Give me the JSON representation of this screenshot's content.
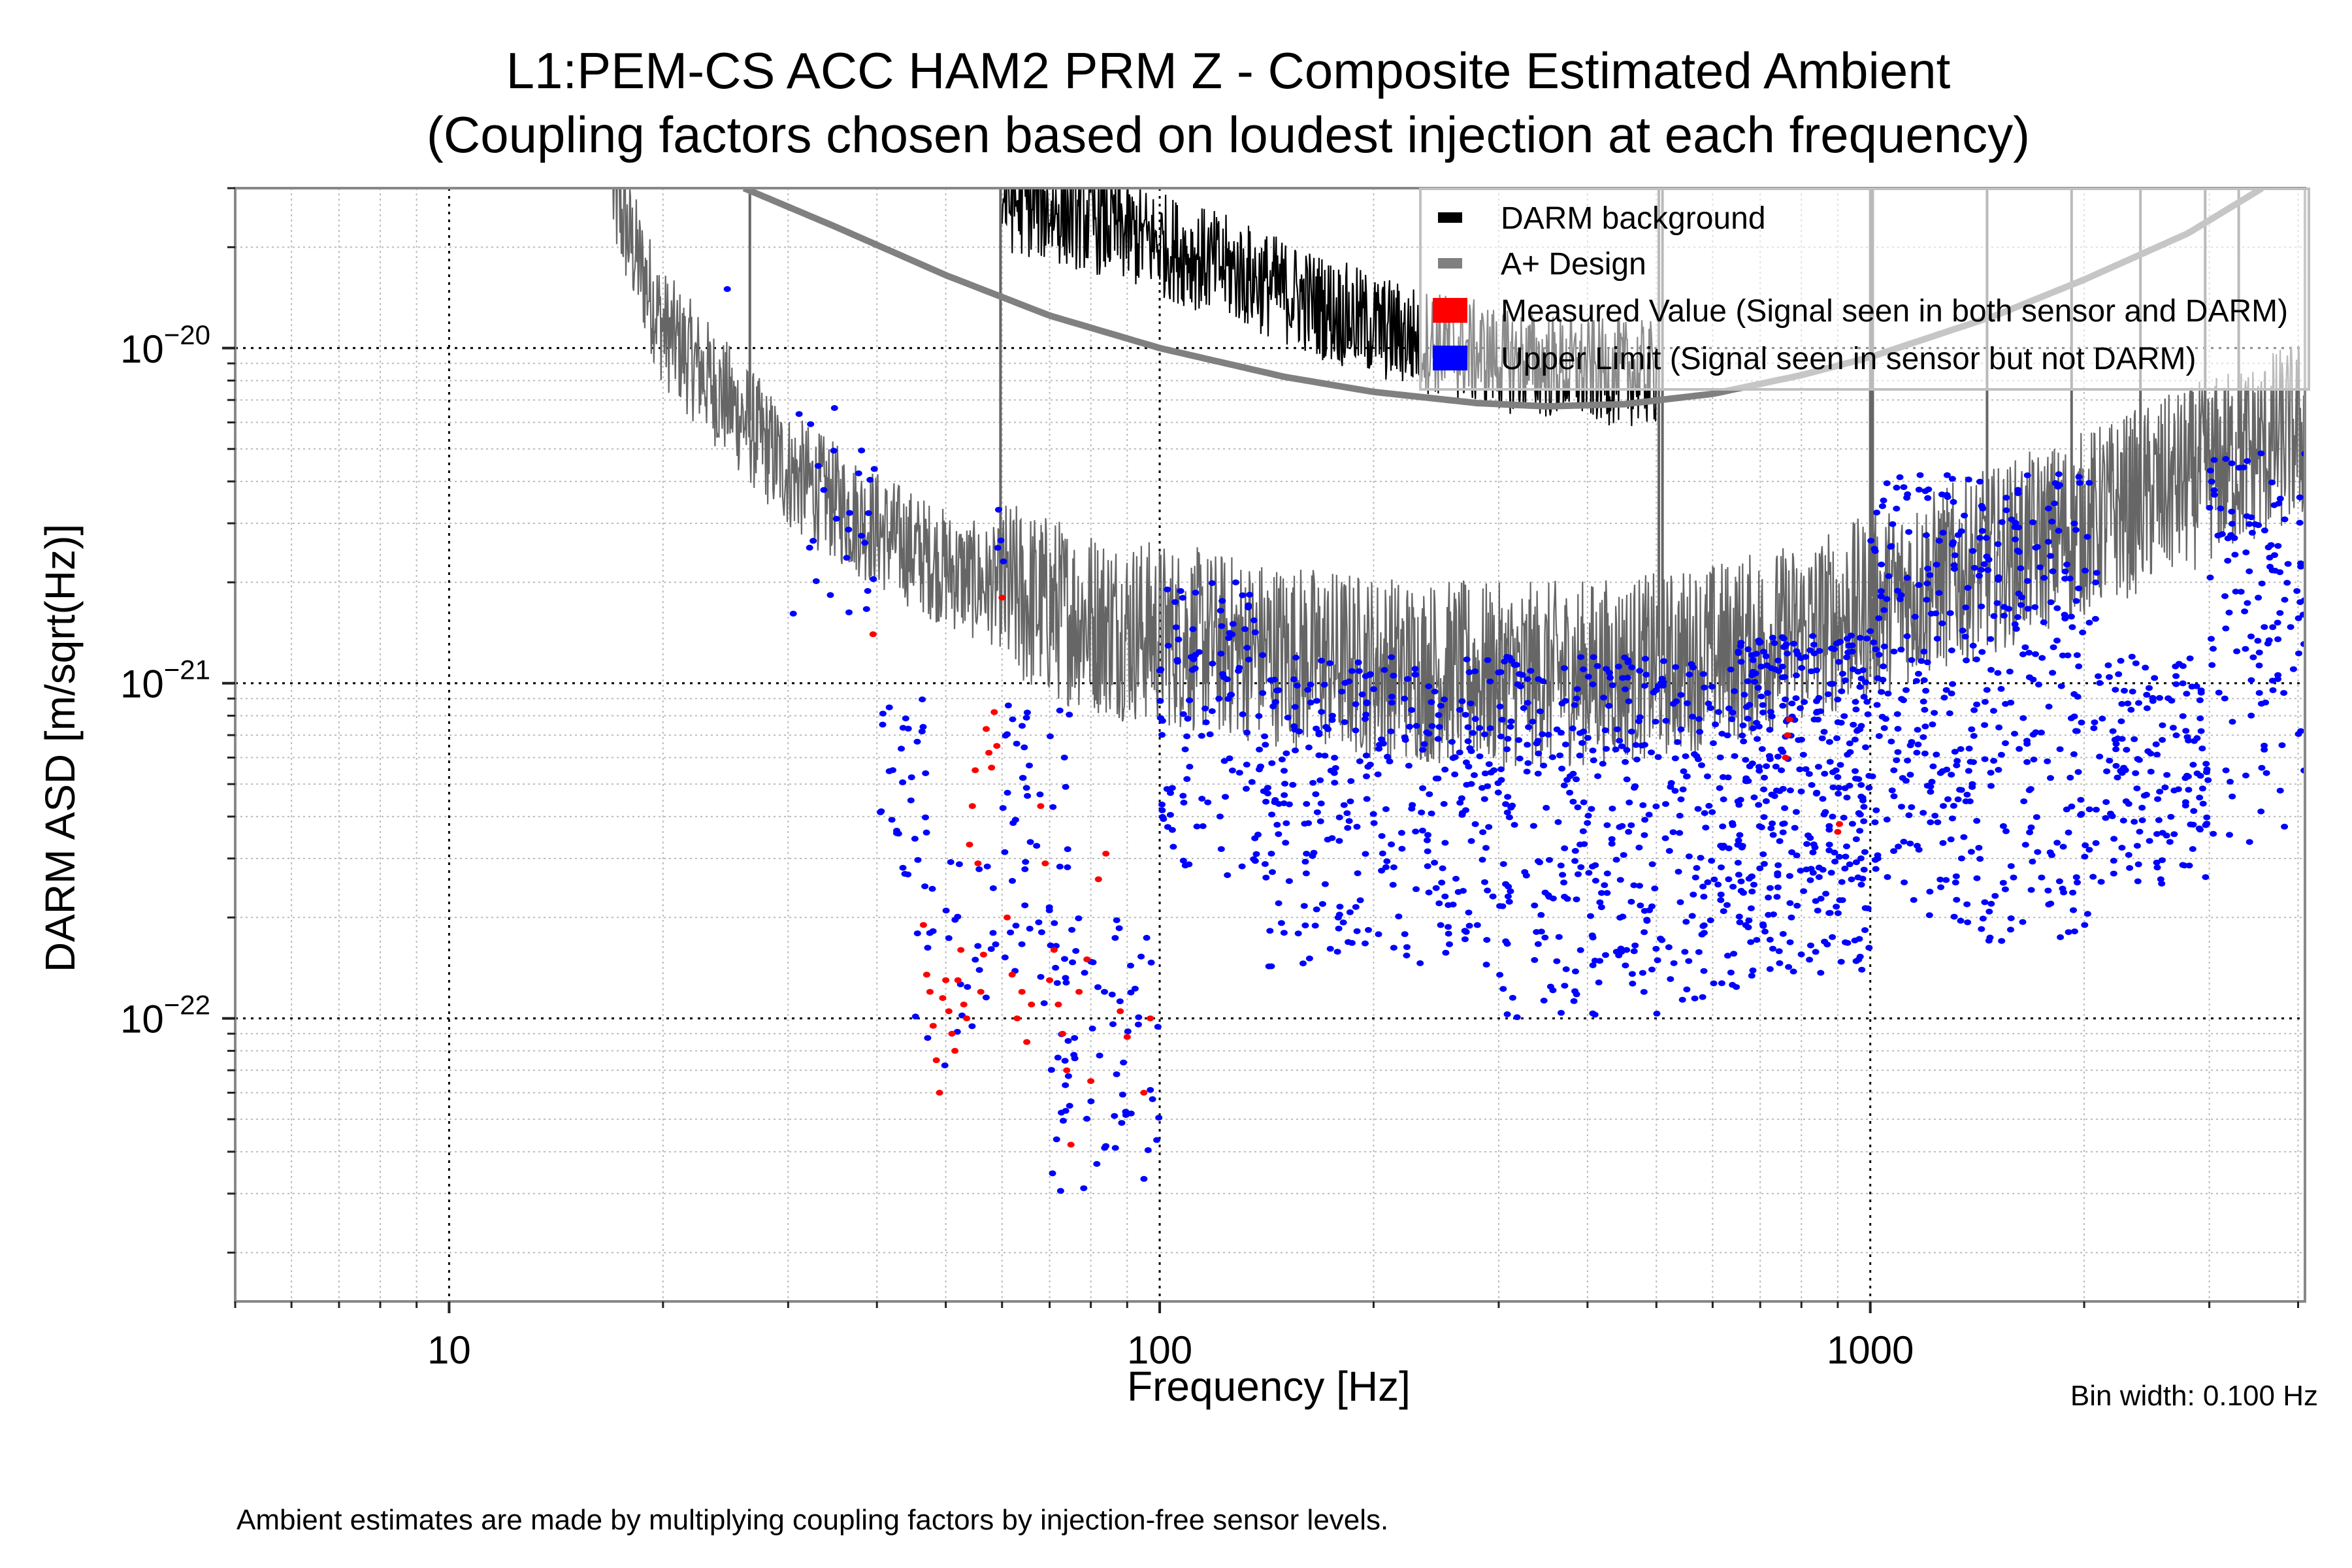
{
  "figure": {
    "title_line1": "L1:PEM-CS ACC HAM2 PRM Z - Composite Estimated Ambient",
    "title_line2": "(Coupling factors chosen based on loudest injection at each frequency)",
    "xlabel": "Frequency [Hz]",
    "ylabel": "DARM ASD [m/sqrt(Hz)]",
    "bin_width_note": "Bin width: 0.100 Hz",
    "footnote": "Ambient estimates are made by multiplying coupling factors by injection-free sensor levels."
  },
  "chart_data": {
    "type": "scatter",
    "title": "L1:PEM-CS ACC HAM2 PRM Z - Composite Estimated Ambient (Coupling factors chosen based on loudest injection at each frequency)",
    "xlabel": "Frequency [Hz]",
    "ylabel": "DARM ASD [m/sqrt(Hz)]",
    "xscale": "log",
    "yscale": "log",
    "xlim": [
      5,
      4090
    ],
    "ylim": [
      1.43e-23,
      3e-20
    ],
    "x_ticks": [
      {
        "value": 10,
        "label": "10"
      },
      {
        "value": 100,
        "label": "100"
      },
      {
        "value": 1000,
        "label": "1000"
      }
    ],
    "y_ticks": [
      {
        "value": 1e-20,
        "base": "10",
        "exp": "−20"
      },
      {
        "value": 1e-21,
        "base": "10",
        "exp": "−21"
      },
      {
        "value": 1e-22,
        "base": "10",
        "exp": "−22"
      }
    ],
    "grid": true,
    "legend_position": "top-right",
    "legend": [
      {
        "label": "DARM background",
        "color": "#000000",
        "marker": "line"
      },
      {
        "label": "A+ Design",
        "color": "#808080",
        "marker": "line"
      },
      {
        "label": "Measured Value (Signal seen in both sensor and DARM)",
        "color": "#ff0000",
        "marker": "square"
      },
      {
        "label": "Upper Limit (Signal seen in sensor but not DARM)",
        "color": "#0000ff",
        "marker": "square"
      }
    ],
    "series": [
      {
        "name": "DARM background",
        "kind": "line",
        "color": "#000000",
        "color_above_curve": "#666666",
        "x": [
          17,
          20,
          25,
          30,
          35,
          40,
          45,
          50,
          55,
          60,
          70,
          80,
          90,
          100,
          120,
          150,
          200,
          250,
          300,
          400,
          500,
          600,
          700,
          800,
          900,
          1000,
          1200,
          1500,
          2000,
          2500,
          3000,
          3500,
          4000
        ],
        "y": [
          3e-20,
          1.2e-20,
          7e-21,
          4.5e-21,
          3.6e-21,
          3e-21,
          2.6e-21,
          2.3e-21,
          2.1e-21,
          2e-21,
          1.8e-21,
          1.65e-21,
          1.55e-21,
          1.5e-21,
          1.4e-21,
          1.3e-21,
          1.2e-21,
          1.15e-21,
          1.12e-21,
          1.15e-21,
          1.2e-21,
          1.3e-21,
          1.4e-21,
          1.5e-21,
          1.65e-21,
          1.8e-21,
          2.1e-21,
          2.5e-21,
          3.2e-21,
          3.9e-21,
          4.6e-21,
          5.3e-21,
          6e-21
        ],
        "upper_branch": {
          "x": [
            60,
            80,
            100,
            130,
            160,
            200,
            250,
            300,
            350,
            400,
            500
          ],
          "y": [
            3e-20,
            2.6e-20,
            2.2e-20,
            1.8e-20,
            1.5e-20,
            1.25e-20,
            1.1e-20,
            1e-20,
            9.5e-21,
            9.2e-21,
            9e-21
          ]
        },
        "lines_hz": [
          26.5,
          59.7,
          504,
          510,
          1000,
          1008,
          1460,
          1920,
          2400,
          2960,
          3300
        ]
      },
      {
        "name": "A+ Design",
        "kind": "line",
        "color": "#808080",
        "x": [
          26,
          35,
          50,
          70,
          100,
          150,
          200,
          280,
          350,
          450,
          600,
          800,
          1000,
          1500,
          2000,
          2800,
          3560
        ],
        "y": [
          3e-20,
          2.3e-20,
          1.65e-20,
          1.25e-20,
          1e-20,
          8.2e-21,
          7.4e-21,
          6.85e-21,
          6.7e-21,
          6.8e-21,
          7.3e-21,
          8.3e-21,
          9.4e-21,
          1.25e-20,
          1.6e-20,
          2.2e-20,
          3e-20
        ]
      },
      {
        "name": "Measured Value (Signal seen in both sensor and DARM)",
        "kind": "scatter",
        "color": "#ff0000",
        "points": [
          [
            39.5,
            1.4e-21
          ],
          [
            46.5,
            1.9e-22
          ],
          [
            47,
            1.35e-22
          ],
          [
            47.5,
            1.2e-22
          ],
          [
            48,
            9.5e-23
          ],
          [
            48.5,
            7.5e-23
          ],
          [
            49,
            6e-23
          ],
          [
            49.5,
            1.15e-22
          ],
          [
            50,
            1.3e-22
          ],
          [
            50.5,
            1.05e-22
          ],
          [
            51,
            9e-23
          ],
          [
            51.5,
            8e-23
          ],
          [
            52,
            1.3e-22
          ],
          [
            52.5,
            1.6e-22
          ],
          [
            53,
            1.1e-22
          ],
          [
            53.5,
            1e-22
          ],
          [
            54,
            3.3e-22
          ],
          [
            54.5,
            4.3e-22
          ],
          [
            55,
            5.5e-22
          ],
          [
            55.5,
            2.9e-22
          ],
          [
            56,
            1.2e-22
          ],
          [
            56.5,
            1.55e-22
          ],
          [
            57,
            7.3e-22
          ],
          [
            57.5,
            6.2e-22
          ],
          [
            58,
            5.6e-22
          ],
          [
            58.5,
            8.2e-22
          ],
          [
            59,
            6.5e-22
          ],
          [
            60,
            1.8e-21
          ],
          [
            61,
            2e-22
          ],
          [
            62,
            1.35e-22
          ],
          [
            63,
            1e-22
          ],
          [
            64,
            1.2e-22
          ],
          [
            65,
            8.5e-23
          ],
          [
            66,
            1.1e-22
          ],
          [
            68,
            4.3e-22
          ],
          [
            69,
            2.9e-22
          ],
          [
            70,
            1.3e-22
          ],
          [
            71,
            1.6e-22
          ],
          [
            72,
            1.1e-22
          ],
          [
            73,
            9e-23
          ],
          [
            74,
            7e-23
          ],
          [
            75,
            4.2e-23
          ],
          [
            77,
            1.2e-22
          ],
          [
            79,
            1.5e-22
          ],
          [
            80,
            6.5e-23
          ],
          [
            82,
            2.6e-22
          ],
          [
            84,
            3.1e-22
          ],
          [
            88,
            1.05e-22
          ],
          [
            90,
            8.8e-23
          ],
          [
            95,
            6e-23
          ],
          [
            97,
            1e-22
          ],
          [
            760,
            6e-22
          ],
          [
            765,
            7e-22
          ],
          [
            770,
            7.8e-22
          ],
          [
            900,
            3.6e-22
          ],
          [
            905,
            3.8e-22
          ]
        ]
      },
      {
        "name": "Upper Limit (Signal seen in sensor but not DARM)",
        "kind": "scatter",
        "color": "#0000ff",
        "clusters": [
          {
            "f_range": [
              24.5,
              25.5
            ],
            "y_range": [
              1.5e-20,
              1.5e-20
            ],
            "n": 1
          },
          {
            "f_range": [
              30,
              40
            ],
            "y_range": [
              1.4e-21,
              7e-21
            ],
            "n": 26
          },
          {
            "f_range": [
              40,
              47
            ],
            "y_range": [
              2.5e-22,
              9e-22
            ],
            "n": 30
          },
          {
            "f_range": [
              45,
              60
            ],
            "y_range": [
              5e-23,
              3e-22
            ],
            "n": 30
          },
          {
            "f_range": [
              59,
              62
            ],
            "y_range": [
              1.3e-21,
              3.8e-21
            ],
            "n": 4
          },
          {
            "f_range": [
              60,
              75
            ],
            "y_range": [
              1.1e-22,
              9e-22
            ],
            "n": 50
          },
          {
            "f_range": [
              70,
              100
            ],
            "y_range": [
              3e-23,
              2e-22
            ],
            "n": 70
          },
          {
            "f_range": [
              100,
              140
            ],
            "y_range": [
              2.5e-22,
              2e-21
            ],
            "n": 110
          },
          {
            "f_range": [
              140,
              300
            ],
            "y_range": [
              1.4e-22,
              1.2e-21
            ],
            "n": 300
          },
          {
            "f_range": [
              300,
              650
            ],
            "y_range": [
              1e-22,
              1.2e-21
            ],
            "n": 380
          },
          {
            "f_range": [
              650,
              1000
            ],
            "y_range": [
              1.3e-22,
              1.4e-21
            ],
            "n": 350
          },
          {
            "f_range": [
              1000,
              2100
            ],
            "y_range": [
              1.6e-22,
              4.3e-21
            ],
            "n": 420
          },
          {
            "f_range": [
              2100,
              3000
            ],
            "y_range": [
              2.4e-22,
              1.2e-21
            ],
            "n": 150
          },
          {
            "f_range": [
              3000,
              4090
            ],
            "y_range": [
              3e-22,
              5e-21
            ],
            "n": 120
          }
        ]
      }
    ]
  }
}
